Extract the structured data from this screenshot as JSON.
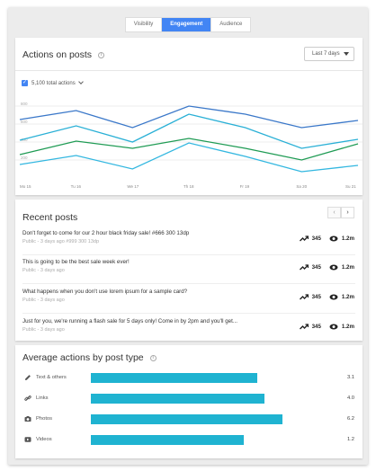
{
  "tabs": [
    {
      "label": "Visibility",
      "active": false
    },
    {
      "label": "Engagement",
      "active": true
    },
    {
      "label": "Audience",
      "active": false
    }
  ],
  "actions_card": {
    "title": "Actions on posts",
    "range": "Last 7 days",
    "total_label": "5,100 total actions"
  },
  "chart_data": {
    "type": "line",
    "x": [
      "Mo 15",
      "Tu 16",
      "We 17",
      "Th 18",
      "Fr 19",
      "Sa 20",
      "Su 21"
    ],
    "y_ticks": [
      "800",
      "600",
      "400",
      "200"
    ],
    "series": [
      {
        "color": "#3b78c9",
        "values": [
          650,
          750,
          560,
          800,
          710,
          560,
          640
        ]
      },
      {
        "color": "#2ab0d6",
        "values": [
          420,
          580,
          400,
          710,
          560,
          330,
          430
        ]
      },
      {
        "color": "#1f9b54",
        "values": [
          260,
          410,
          330,
          440,
          330,
          200,
          380
        ]
      },
      {
        "color": "#33b7e0",
        "values": [
          150,
          250,
          100,
          390,
          240,
          70,
          140
        ]
      }
    ]
  },
  "recent_posts": {
    "title": "Recent posts",
    "items": [
      {
        "text": "Don't forget to come for our 2 hour black friday sale! #666 300 13dp",
        "meta": "Public - 3 days ago #999 300 13dp",
        "trend": "345",
        "views": "1.2m"
      },
      {
        "text": "This is going to be the best sale week ever!",
        "meta": "Public - 3 days ago",
        "trend": "345",
        "views": "1.2m"
      },
      {
        "text": "What happens when you don't use lorem ipsum for a sample card?",
        "meta": "Public - 3 days ago",
        "trend": "345",
        "views": "1.2m"
      },
      {
        "text": "Just for you, we're running a flash sale for 5 days only! Come in by 2pm and you'll get...",
        "meta": "Public - 3 days ago",
        "trend": "345",
        "views": "1.2m"
      }
    ]
  },
  "avg_card": {
    "title": "Average actions by post type",
    "rows": [
      {
        "label": "Text & others",
        "value": "3.1",
        "fill": 0.74,
        "icon": "pencil-icon"
      },
      {
        "label": "Links",
        "value": "4.0",
        "fill": 0.77,
        "icon": "link-icon"
      },
      {
        "label": "Photos",
        "value": "6.2",
        "fill": 0.85,
        "icon": "camera-icon"
      },
      {
        "label": "Videos",
        "value": "1.2",
        "fill": 0.68,
        "icon": "video-icon"
      }
    ],
    "bar_color": "#1fb3d1"
  }
}
